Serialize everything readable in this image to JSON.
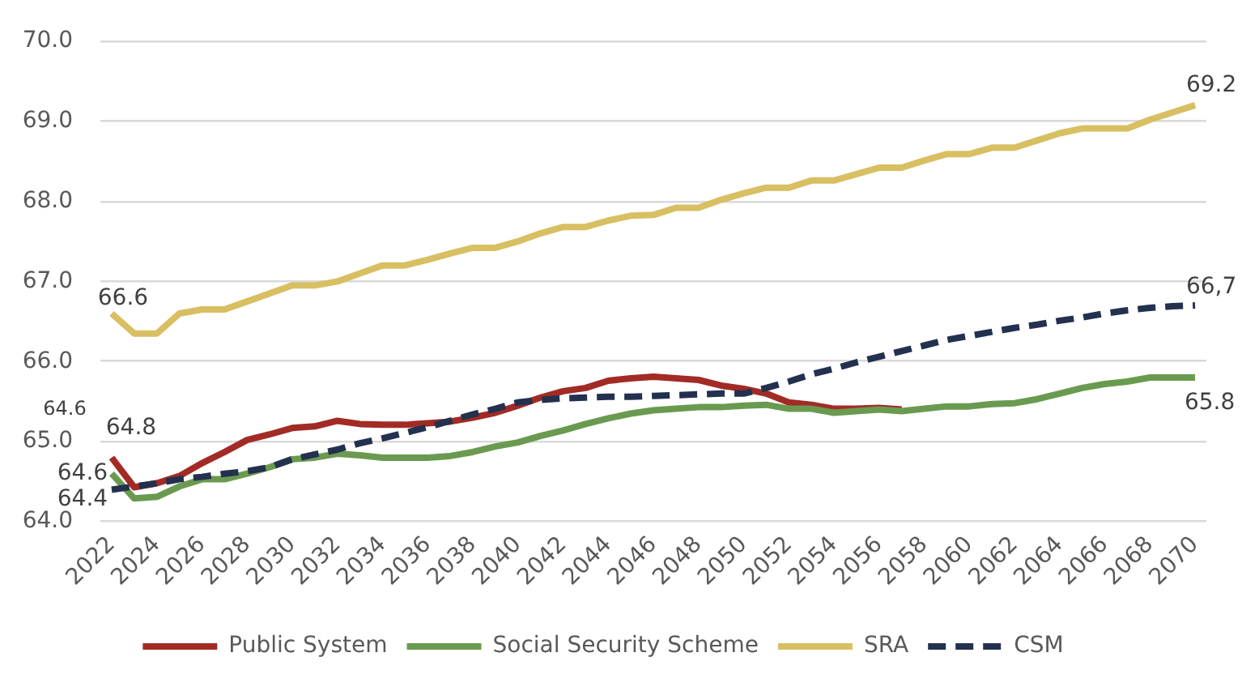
{
  "chart_data": {
    "type": "line",
    "categories": [
      "2022",
      null,
      "2024",
      null,
      "2026",
      null,
      "2028",
      null,
      "2030",
      null,
      "2032",
      null,
      "2034",
      null,
      "2036",
      null,
      "2038",
      null,
      "2040",
      null,
      "2042",
      null,
      "2044",
      null,
      "2046",
      null,
      "2048",
      null,
      "2050",
      null,
      "2052",
      null,
      "2054",
      null,
      "2056",
      null,
      "2058",
      null,
      "2060",
      null,
      "2062",
      null,
      "2064",
      null,
      "2066",
      null,
      "2068",
      null,
      "2070"
    ],
    "series": [
      {
        "name": "Public System",
        "color": "#a22b26",
        "values": [
          64.8,
          64.43,
          64.48,
          64.57,
          64.73,
          64.87,
          65.02,
          65.09,
          65.17,
          65.19,
          65.26,
          65.22,
          65.21,
          65.21,
          65.23,
          65.25,
          65.3,
          65.36,
          65.45,
          65.55,
          65.63,
          65.67,
          65.76,
          65.79,
          65.81,
          65.79,
          65.77,
          65.7,
          65.66,
          65.6,
          65.49,
          65.46,
          65.41,
          65.41,
          65.42,
          65.4,
          null,
          null,
          null,
          null,
          null,
          null,
          null,
          null,
          null,
          null,
          null,
          null,
          null
        ]
      },
      {
        "name": "Social Security Scheme",
        "color": "#6a9a4f",
        "values": [
          64.6,
          64.29,
          64.31,
          64.44,
          64.53,
          64.53,
          64.6,
          64.68,
          64.78,
          64.8,
          64.85,
          64.83,
          64.8,
          64.8,
          64.8,
          64.82,
          64.87,
          64.94,
          64.99,
          65.07,
          65.14,
          65.22,
          65.29,
          65.35,
          65.39,
          65.41,
          65.43,
          65.43,
          65.45,
          65.46,
          65.41,
          65.41,
          65.36,
          65.38,
          65.4,
          65.38,
          65.41,
          65.44,
          65.44,
          65.47,
          65.48,
          65.53,
          65.6,
          65.67,
          65.72,
          65.75,
          65.8,
          65.8,
          65.8
        ]
      },
      {
        "name": "SRA",
        "color": "#d8bf62",
        "values": [
          66.6,
          66.35,
          66.35,
          66.6,
          66.65,
          66.65,
          66.75,
          66.85,
          66.95,
          66.95,
          67.0,
          67.1,
          67.2,
          67.2,
          67.27,
          67.35,
          67.42,
          67.42,
          67.5,
          67.6,
          67.68,
          67.68,
          67.76,
          67.82,
          67.83,
          67.92,
          67.92,
          68.02,
          68.1,
          68.17,
          68.17,
          68.26,
          68.26,
          68.34,
          68.42,
          68.42,
          68.51,
          68.59,
          68.59,
          68.67,
          68.67,
          68.76,
          68.85,
          68.91,
          68.91,
          68.91,
          69.02,
          69.11,
          69.2
        ]
      },
      {
        "name": "CSM",
        "color": "#23314f",
        "line_style": "dashed",
        "values": [
          64.4,
          64.44,
          64.48,
          64.53,
          64.56,
          64.6,
          64.63,
          64.68,
          64.78,
          64.84,
          64.9,
          64.98,
          65.04,
          65.11,
          65.18,
          65.26,
          65.34,
          65.41,
          65.49,
          65.52,
          65.54,
          65.55,
          65.56,
          65.56,
          65.57,
          65.58,
          65.59,
          65.6,
          65.6,
          65.67,
          65.75,
          65.84,
          65.91,
          65.99,
          66.06,
          66.13,
          66.2,
          66.27,
          66.32,
          66.37,
          66.42,
          66.46,
          66.51,
          66.55,
          66.6,
          66.64,
          66.67,
          66.69,
          66.7
        ]
      }
    ],
    "ylim": [
      64,
      70
    ],
    "yticks": [
      {
        "value": 64,
        "label": "64.0"
      },
      {
        "value": 65,
        "label": "65.0"
      },
      {
        "value": 66,
        "label": "66.0"
      },
      {
        "value": 67,
        "label": "67.0"
      },
      {
        "value": 68,
        "label": "68.0"
      },
      {
        "value": 69,
        "label": "69.0"
      },
      {
        "value": 70,
        "label": "70.0"
      }
    ],
    "grid": "y",
    "legend": "bottom",
    "annotations": [
      {
        "text": "66.6",
        "x": "2022",
        "y": 66.6
      },
      {
        "text": "64.8",
        "x": "2022",
        "y": 64.8
      },
      {
        "text": "64.6",
        "x": "2022",
        "y": 64.6
      },
      {
        "text": "64.4",
        "x": "2022",
        "y": 64.4
      },
      {
        "text": "69.2",
        "x": "2070",
        "y": 69.2
      },
      {
        "text": "66,7",
        "x": "2070",
        "y": 66.7
      },
      {
        "text": "65.8",
        "x": "2070",
        "y": 65.8
      },
      "64.6"
    ]
  }
}
